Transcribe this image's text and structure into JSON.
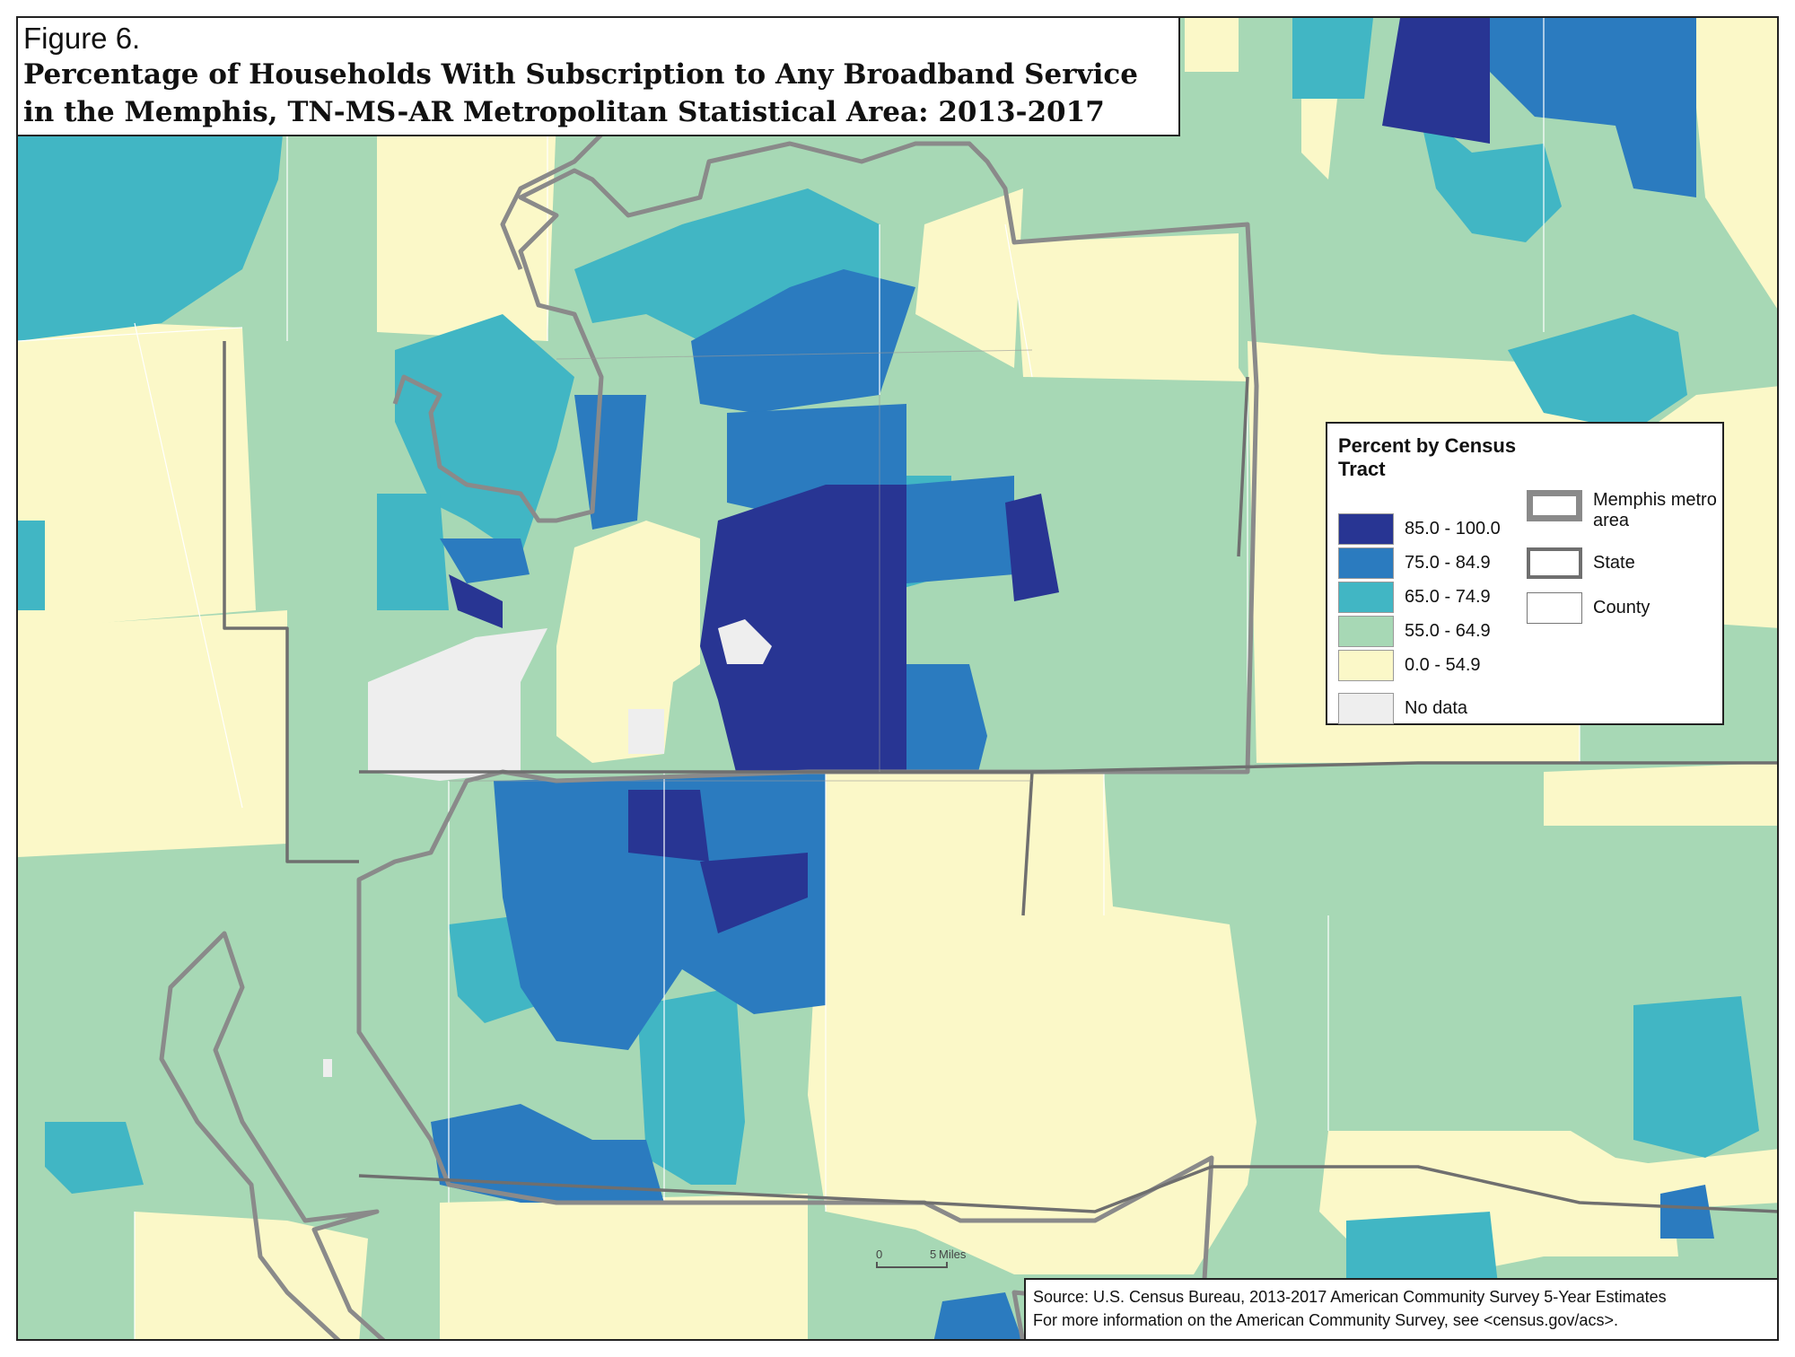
{
  "figure_label": "Figure 6.",
  "title_lines": [
    "Percentage of Households With Subscription to Any Broadband Service",
    "in the Memphis, TN-MS-AR Metropolitan Statistical Area: 2013-2017"
  ],
  "legend": {
    "title": "Percent by Census Tract",
    "classes": [
      {
        "label": "85.0 - 100.0",
        "color": "#283593"
      },
      {
        "label": "75.0 - 84.9",
        "color": "#2b7bbf"
      },
      {
        "label": "65.0 - 74.9",
        "color": "#41b6c4"
      },
      {
        "label": "55.0 - 64.9",
        "color": "#a7d8b5"
      },
      {
        "label": "0.0 - 54.9",
        "color": "#fbf8c8"
      }
    ],
    "no_data": {
      "label": "No data",
      "color": "#eeeeee"
    },
    "boundaries": [
      {
        "label": "Memphis metro area",
        "style": "thick-gray"
      },
      {
        "label": "State",
        "style": "medium-dark"
      },
      {
        "label": "County",
        "style": "thin-gray"
      }
    ]
  },
  "scale_bar": {
    "zero": "0",
    "end": "5",
    "unit": "Miles"
  },
  "source_lines": [
    "Source: U.S. Census Bureau, 2013-2017 American Community Survey 5-Year Estimates",
    "For more information on the American Community Survey, see <census.gov/acs>."
  ],
  "colors": {
    "c85": "#283593",
    "c75": "#2b7bbf",
    "c65": "#41b6c4",
    "c55": "#a7d8b5",
    "c0": "#fbf8c8",
    "nodata": "#eeeeee",
    "metro_outline": "#8a8a8a",
    "state_outline": "#6f6f6f",
    "county_line": "#ffffff"
  }
}
